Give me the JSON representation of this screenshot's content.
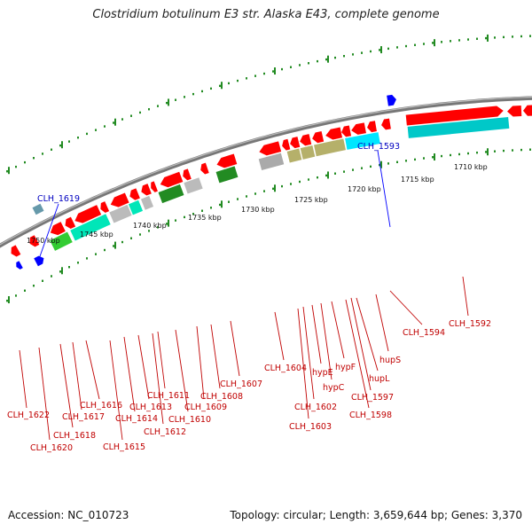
{
  "title": "Clostridium botulinum E3 str. Alaska E43, complete genome",
  "footer": {
    "accession": "Accession: NC_010723",
    "stats": "Topology: circular; Length: 3,659,644 bp; Genes: 3,370"
  },
  "colors": {
    "forward": "#ff0000",
    "reverse": "#0000ff",
    "backbone": "#888888",
    "scale": "#228b22",
    "red_label": "#c00000",
    "blue_label": "#0000c0"
  },
  "scale_labels": [
    "1750 kbp",
    "1745 kbp",
    "1740 kbp",
    "1735 kbp",
    "1730 kbp",
    "1725 kbp",
    "1720 kbp",
    "1715 kbp",
    "1710 kbp"
  ],
  "blue_gene_labels": [
    "CLH_1619",
    "CLH_1593"
  ],
  "red_gene_labels": [
    "CLH_1622",
    "CLH_1620",
    "CLH_1618",
    "CLH_1617",
    "CLH_1616",
    "CLH_1615",
    "CLH_1614",
    "CLH_1613",
    "CLH_1612",
    "CLH_1611",
    "CLH_1610",
    "CLH_1609",
    "CLH_1608",
    "CLH_1607",
    "CLH_1604",
    "CLH_1603",
    "CLH_1602",
    "hypE",
    "hypC",
    "hypF",
    "hupL",
    "CLH_1597",
    "CLH_1598",
    "hupS",
    "CLH_1594",
    "CLH_1592"
  ]
}
